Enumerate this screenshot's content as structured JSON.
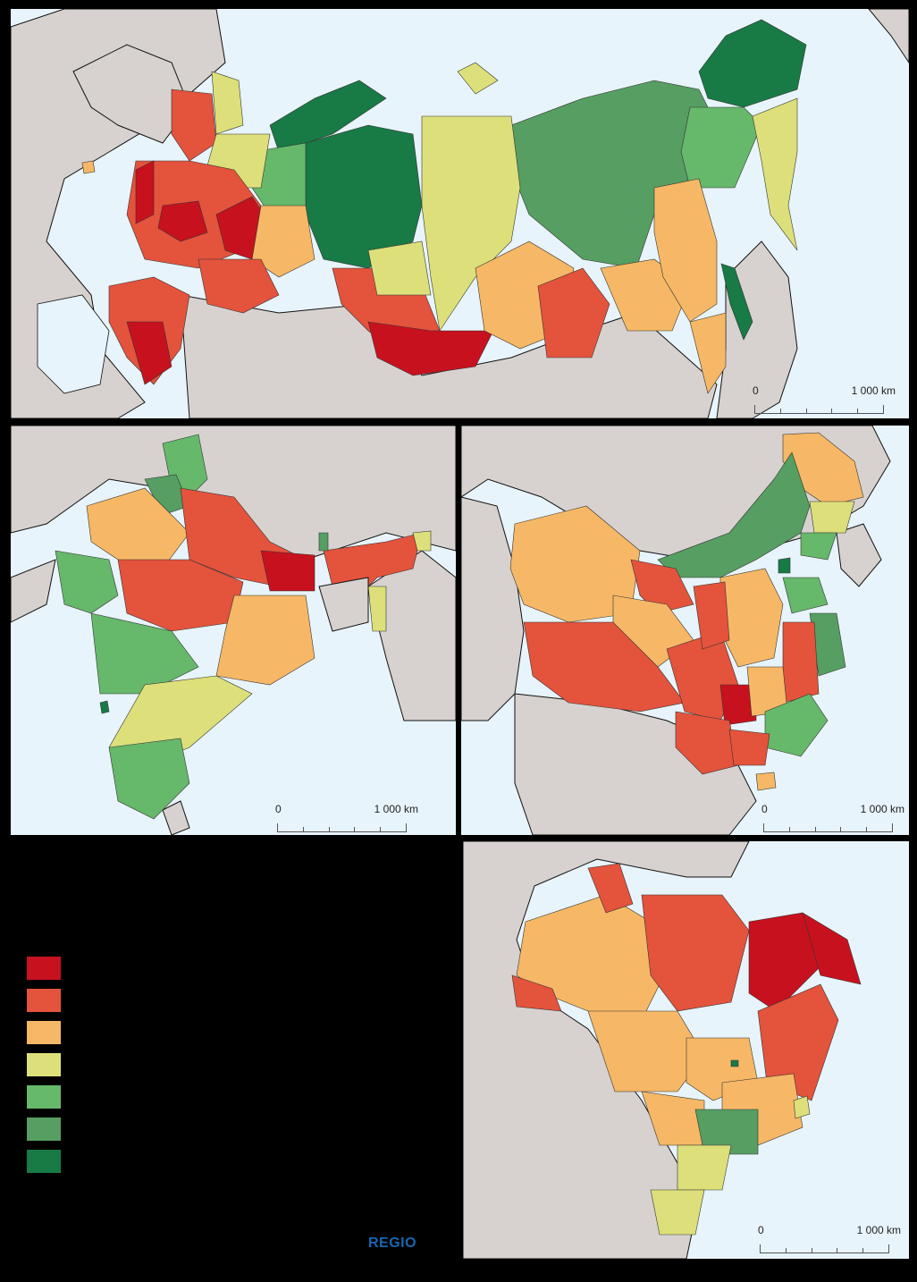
{
  "legend_colors": [
    "#c8111e",
    "#e4533c",
    "#f6b866",
    "#dde07a",
    "#66b86b",
    "#569e62",
    "#187a45"
  ],
  "colors": {
    "sea": "#e8f4fb",
    "land": "#d7d2cf",
    "border": "#111111",
    "background": "#000000",
    "logo": "#1766b0"
  },
  "scale_bars": {
    "russia": {
      "zero": "0",
      "max": "1 000 km"
    },
    "india": {
      "zero": "0",
      "max": "1 000 km"
    },
    "china": {
      "zero": "0",
      "max": "1 000 km"
    },
    "brazil": {
      "zero": "0",
      "max": "1 000 km"
    }
  },
  "logo": "REGIO"
}
